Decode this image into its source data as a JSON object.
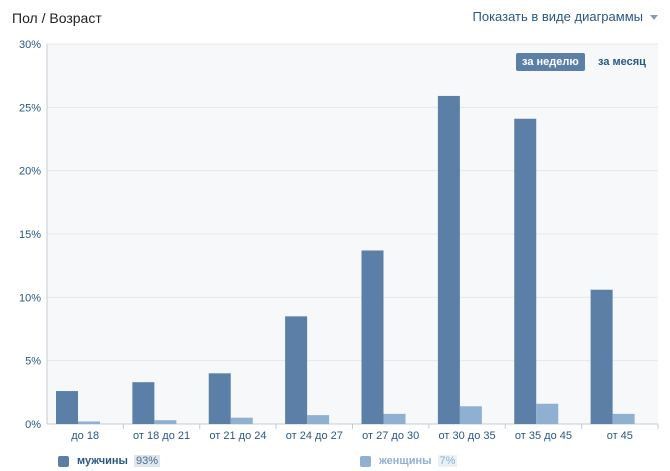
{
  "header": {
    "title": "Пол / Возраст",
    "view_toggle": "Показать в виде диаграммы"
  },
  "period": {
    "week": "за неделю",
    "month": "за месяц"
  },
  "colors": {
    "men": "#5b7fa6",
    "women": "#8fb0d0",
    "grid": "#e4e8ed",
    "plot_bg": "#f7f8fa",
    "tick": "#2a5885"
  },
  "legend": {
    "men": {
      "label": "мужчины",
      "share": "93%"
    },
    "women": {
      "label": "женщины",
      "share": "7%"
    }
  },
  "chart_data": {
    "type": "bar",
    "title": "Пол / Возраст",
    "categories": [
      "до 18",
      "от 18 до 21",
      "от 21 до 24",
      "от 24 до 27",
      "от 27 до 30",
      "от 30 до 35",
      "от 35 до 45",
      "от 45"
    ],
    "series": [
      {
        "name": "мужчины",
        "values": [
          2.6,
          3.3,
          4.0,
          8.5,
          13.7,
          25.9,
          24.1,
          10.6
        ]
      },
      {
        "name": "женщины",
        "values": [
          0.2,
          0.3,
          0.5,
          0.7,
          0.8,
          1.4,
          1.6,
          0.8
        ]
      }
    ],
    "yticks": [
      "0%",
      "5%",
      "10%",
      "15%",
      "20%",
      "25%",
      "30%"
    ],
    "ylim": [
      0,
      30
    ],
    "xlabel": "",
    "ylabel": "",
    "legend_position": "bottom",
    "grid": true
  }
}
